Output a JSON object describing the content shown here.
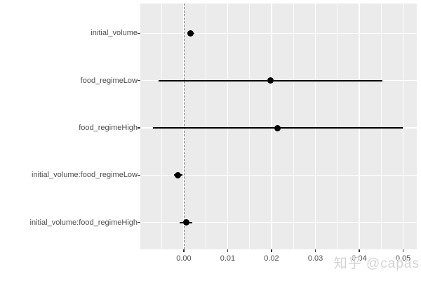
{
  "watermark": {
    "text": "知乎 @capas"
  },
  "chart_data": {
    "type": "scatter",
    "subtype": "dot-whisker-coefficient-plot",
    "orientation": "horizontal",
    "title": "",
    "xlabel": "",
    "ylabel": "",
    "legend": "none",
    "grid": "on",
    "panel_bg": "#EBEBEB",
    "grid_major_color": "#FFFFFF",
    "grid_minor_color": "#FFFFFF",
    "point_color": "#000000",
    "whisker_color": "#000000",
    "text_color": "#4D4D4D",
    "zero_line": {
      "x": 0,
      "style": "dashed",
      "color": "#737373"
    },
    "xlim": [
      -0.0099,
      0.0531
    ],
    "x_axis": {
      "major_ticks": [
        0,
        0.01,
        0.02,
        0.03,
        0.04,
        0.05
      ],
      "tick_labels": [
        "0.00",
        "0.01",
        "0.02",
        "0.03",
        "0.04",
        "0.05"
      ],
      "minor_ticks": [
        -0.005,
        0.005,
        0.015,
        0.025,
        0.035,
        0.045
      ]
    },
    "categories": [
      "initial_volume",
      "food_regimeLow",
      "food_regimeHigh",
      "initial_volume:food_regimeLow",
      "initial_volume:food_regimeHigh"
    ],
    "series": [
      {
        "name": "coefficient-estimates",
        "points": [
          {
            "term": "initial_volume",
            "estimate": 0.0016,
            "ci_low": 0.0008,
            "ci_high": 0.0024
          },
          {
            "term": "food_regimeLow",
            "estimate": 0.0198,
            "ci_low": -0.0057,
            "ci_high": 0.0453
          },
          {
            "term": "food_regimeHigh",
            "estimate": 0.0214,
            "ci_low": -0.007,
            "ci_high": 0.0499
          },
          {
            "term": "initial_volume:food_regimeLow",
            "estimate": -0.0013,
            "ci_low": -0.0023,
            "ci_high": -0.0003
          },
          {
            "term": "initial_volume:food_regimeHigh",
            "estimate": 0.0005,
            "ci_low": -0.0009,
            "ci_high": 0.0019
          }
        ]
      }
    ]
  }
}
